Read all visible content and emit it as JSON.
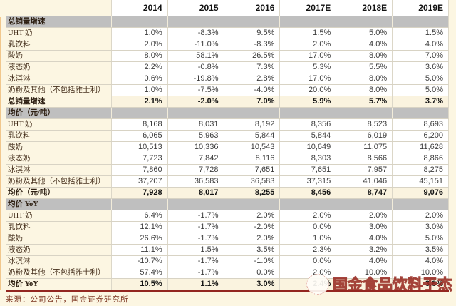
{
  "columns": [
    "2014",
    "2015",
    "2016",
    "2017E",
    "2018E",
    "2019E"
  ],
  "sections": [
    {
      "title": "总销量增速",
      "rows": [
        {
          "label": "UHT 奶",
          "values": [
            "1.0%",
            "-8.3%",
            "9.5%",
            "1.5%",
            "5.0%",
            "1.5%"
          ]
        },
        {
          "label": "乳饮料",
          "values": [
            "2.0%",
            "-11.0%",
            "-8.3%",
            "2.0%",
            "4.0%",
            "4.0%"
          ]
        },
        {
          "label": "酸奶",
          "values": [
            "8.0%",
            "58.1%",
            "26.5%",
            "17.0%",
            "8.0%",
            "7.0%"
          ]
        },
        {
          "label": "液态奶",
          "values": [
            "2.2%",
            "-0.8%",
            "7.3%",
            "5.3%",
            "5.5%",
            "3.6%"
          ]
        },
        {
          "label": "冰淇淋",
          "values": [
            "0.6%",
            "-19.8%",
            "2.8%",
            "17.0%",
            "8.0%",
            "5.0%"
          ]
        },
        {
          "label": "奶粉及其他（不包括雅士利）",
          "values": [
            "1.0%",
            "-7.5%",
            "-4.0%",
            "20.0%",
            "8.0%",
            "5.0%"
          ]
        }
      ],
      "total": {
        "label": "总销量增速",
        "values": [
          "2.1%",
          "-2.0%",
          "7.0%",
          "5.9%",
          "5.7%",
          "3.7%"
        ]
      }
    },
    {
      "title": "均价（元/吨）",
      "rows": [
        {
          "label": "UHT 奶",
          "values": [
            "8,168",
            "8,031",
            "8,192",
            "8,356",
            "8,523",
            "8,693"
          ]
        },
        {
          "label": "乳饮料",
          "values": [
            "6,065",
            "5,963",
            "5,844",
            "5,844",
            "6,019",
            "6,200"
          ]
        },
        {
          "label": "酸奶",
          "values": [
            "10,513",
            "10,336",
            "10,543",
            "10,649",
            "11,075",
            "11,628"
          ]
        },
        {
          "label": "液态奶",
          "values": [
            "7,723",
            "7,842",
            "8,116",
            "8,303",
            "8,566",
            "8,866"
          ]
        },
        {
          "label": "冰淇淋",
          "values": [
            "7,860",
            "7,728",
            "7,651",
            "7,651",
            "7,957",
            "8,275"
          ]
        },
        {
          "label": "奶粉及其他（不包括雅士利）",
          "values": [
            "37,207",
            "36,583",
            "36,583",
            "37,315",
            "41,046",
            "45,151"
          ]
        }
      ],
      "total": {
        "label": "均价（元/吨）",
        "values": [
          "7,928",
          "8,017",
          "8,255",
          "8,456",
          "8,747",
          "9,076"
        ]
      }
    },
    {
      "title": "均价 YoY",
      "rows": [
        {
          "label": "UHT 奶",
          "values": [
            "6.4%",
            "-1.7%",
            "2.0%",
            "2.0%",
            "2.0%",
            "2.0%"
          ]
        },
        {
          "label": "乳饮料",
          "values": [
            "12.1%",
            "-1.7%",
            "-2.0%",
            "0.0%",
            "3.0%",
            "3.0%"
          ]
        },
        {
          "label": "酸奶",
          "values": [
            "26.6%",
            "-1.7%",
            "2.0%",
            "1.0%",
            "4.0%",
            "5.0%"
          ]
        },
        {
          "label": "液态奶",
          "values": [
            "11.1%",
            "1.5%",
            "3.5%",
            "2.3%",
            "3.2%",
            "3.5%"
          ]
        },
        {
          "label": "冰淇淋",
          "values": [
            "-10.7%",
            "-1.7%",
            "-1.0%",
            "0.0%",
            "4.0%",
            "4.0%"
          ]
        },
        {
          "label": "奶粉及其他（不包括雅士利）",
          "values": [
            "57.4%",
            "-1.7%",
            "0.0%",
            "2.0%",
            "10.0%",
            "10.0%"
          ]
        }
      ],
      "total": {
        "label": "均价 YoY",
        "values": [
          "10.5%",
          "1.1%",
          "3.0%",
          "2.4%",
          "",
          "3.8%"
        ]
      }
    }
  ],
  "footer": {
    "source": "来源：公司公告，国金证券研究所"
  },
  "watermark": {
    "text": "国金食品饮料于杰"
  },
  "colors": {
    "page_bg": "#fcf6e2",
    "cell_bg": "#ffffff",
    "section_band": "#bfbfbf",
    "total_row_bg": "#faf3df",
    "bottom_rule": "#932620",
    "watermark_red": "#96281f",
    "edge_orange": "#e8a046"
  }
}
